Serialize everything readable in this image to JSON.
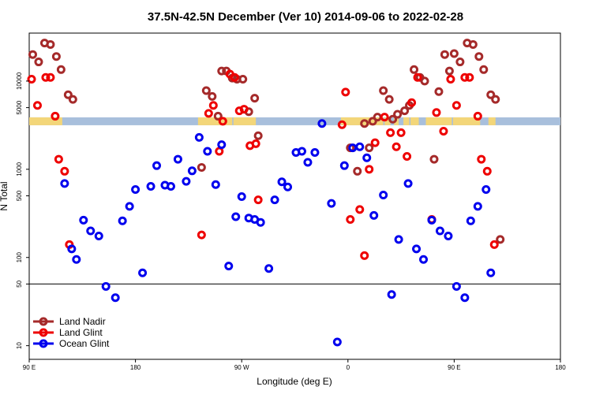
{
  "chart_data": {
    "type": "scatter",
    "title": "37.5N-42.5N December (Ver 10)   2014-09-06 to 2022-02-28",
    "xlabel": "Longitude (deg E)",
    "ylabel": "N Total",
    "y_scale": "log",
    "ylim": [
      7,
      35000
    ],
    "x_ticks": [
      {
        "value": 90,
        "label": "90 E"
      },
      {
        "value": 180,
        "label": "180"
      },
      {
        "value": 270,
        "label": "90 W"
      },
      {
        "value": 360,
        "label": "0"
      },
      {
        "value": 450,
        "label": "90 E"
      },
      {
        "value": 540,
        "label": "180"
      }
    ],
    "y_ticks": [
      10,
      50,
      100,
      500,
      1000,
      5000,
      10000
    ],
    "reference_line": 50,
    "land_band": {
      "y": 3500,
      "colors": {
        "ocean": "#a8bfdc",
        "land": "#f3d679"
      }
    },
    "legend_position": "bottom-left",
    "series": [
      {
        "name": "Land Nadir",
        "color": "#a52a2a",
        "points": [
          [
            93,
            20000
          ],
          [
            98,
            16500
          ],
          [
            103,
            27000
          ],
          [
            108,
            26000
          ],
          [
            113,
            19000
          ],
          [
            117,
            13500
          ],
          [
            123,
            7000
          ],
          [
            127,
            6200
          ],
          [
            236,
            1050
          ],
          [
            240,
            7800
          ],
          [
            245,
            6700
          ],
          [
            250,
            4000
          ],
          [
            253,
            13000
          ],
          [
            257,
            13000
          ],
          [
            262,
            10800
          ],
          [
            266,
            10500
          ],
          [
            271,
            10500
          ],
          [
            276,
            4500
          ],
          [
            281,
            6400
          ],
          [
            284,
            2400
          ],
          [
            362,
            1750
          ],
          [
            368,
            950
          ],
          [
            374,
            3300
          ],
          [
            378,
            1750
          ],
          [
            381,
            3500
          ],
          [
            385,
            3900
          ],
          [
            390,
            7800
          ],
          [
            395,
            6200
          ],
          [
            398,
            3700
          ],
          [
            402,
            4200
          ],
          [
            408,
            4600
          ],
          [
            412,
            5300
          ],
          [
            416,
            13500
          ],
          [
            421,
            11000
          ],
          [
            425,
            10000
          ],
          [
            433,
            1300
          ],
          [
            437,
            7600
          ],
          [
            442,
            20000
          ],
          [
            446,
            13000
          ],
          [
            450,
            20500
          ],
          [
            455,
            16500
          ],
          [
            461,
            27000
          ],
          [
            466,
            26000
          ],
          [
            471,
            19000
          ],
          [
            475,
            13500
          ],
          [
            481,
            7000
          ],
          [
            485,
            6200
          ],
          [
            489,
            160
          ]
        ]
      },
      {
        "name": "Land Glint",
        "color": "#ee0000",
        "points": [
          [
            92,
            10500
          ],
          [
            97,
            5300
          ],
          [
            104,
            11000
          ],
          [
            108,
            11000
          ],
          [
            112,
            4000
          ],
          [
            115,
            1300
          ],
          [
            120,
            950
          ],
          [
            124,
            140
          ],
          [
            236,
            180
          ],
          [
            242,
            4300
          ],
          [
            246,
            5300
          ],
          [
            251,
            1600
          ],
          [
            254,
            3500
          ],
          [
            260,
            12000
          ],
          [
            264,
            11000
          ],
          [
            268,
            4600
          ],
          [
            272,
            4800
          ],
          [
            277,
            1850
          ],
          [
            282,
            1950
          ],
          [
            284,
            450
          ],
          [
            355,
            3200
          ],
          [
            358,
            7500
          ],
          [
            362,
            270
          ],
          [
            370,
            350
          ],
          [
            374,
            105
          ],
          [
            378,
            1000
          ],
          [
            383,
            2000
          ],
          [
            391,
            3900
          ],
          [
            396,
            2600
          ],
          [
            401,
            1800
          ],
          [
            405,
            2600
          ],
          [
            410,
            1400
          ],
          [
            414,
            5700
          ],
          [
            419,
            11000
          ],
          [
            431,
            270
          ],
          [
            435,
            4400
          ],
          [
            441,
            2700
          ],
          [
            447,
            10500
          ],
          [
            452,
            5300
          ],
          [
            459,
            11000
          ],
          [
            463,
            11000
          ],
          [
            470,
            4000
          ],
          [
            473,
            1300
          ],
          [
            478,
            950
          ],
          [
            484,
            140
          ]
        ]
      },
      {
        "name": "Ocean Glint",
        "color": "#0000ee",
        "points": [
          [
            120,
            690
          ],
          [
            126,
            125
          ],
          [
            130,
            95
          ],
          [
            136,
            265
          ],
          [
            142,
            200
          ],
          [
            149,
            175
          ],
          [
            155,
            47
          ],
          [
            163,
            35
          ],
          [
            169,
            260
          ],
          [
            175,
            380
          ],
          [
            180,
            590
          ],
          [
            186,
            67
          ],
          [
            193,
            640
          ],
          [
            198,
            1100
          ],
          [
            205,
            660
          ],
          [
            210,
            640
          ],
          [
            216,
            1300
          ],
          [
            223,
            730
          ],
          [
            228,
            960
          ],
          [
            234,
            2300
          ],
          [
            241,
            1600
          ],
          [
            248,
            670
          ],
          [
            253,
            1900
          ],
          [
            259,
            80
          ],
          [
            265,
            290
          ],
          [
            270,
            490
          ],
          [
            276,
            280
          ],
          [
            281,
            270
          ],
          [
            286,
            250
          ],
          [
            293,
            75
          ],
          [
            298,
            450
          ],
          [
            304,
            720
          ],
          [
            309,
            630
          ],
          [
            316,
            1550
          ],
          [
            321,
            1600
          ],
          [
            326,
            1200
          ],
          [
            332,
            1550
          ],
          [
            338,
            3300
          ],
          [
            346,
            410
          ],
          [
            351,
            11
          ],
          [
            357,
            1100
          ],
          [
            364,
            1750
          ],
          [
            370,
            1800
          ],
          [
            376,
            1350
          ],
          [
            382,
            300
          ],
          [
            390,
            510
          ],
          [
            397,
            38
          ],
          [
            403,
            160
          ],
          [
            411,
            690
          ],
          [
            418,
            125
          ],
          [
            424,
            95
          ],
          [
            431,
            265
          ],
          [
            438,
            200
          ],
          [
            445,
            175
          ],
          [
            452,
            47
          ],
          [
            459,
            35
          ],
          [
            464,
            260
          ],
          [
            470,
            380
          ],
          [
            477,
            590
          ],
          [
            481,
            67
          ]
        ]
      }
    ]
  }
}
